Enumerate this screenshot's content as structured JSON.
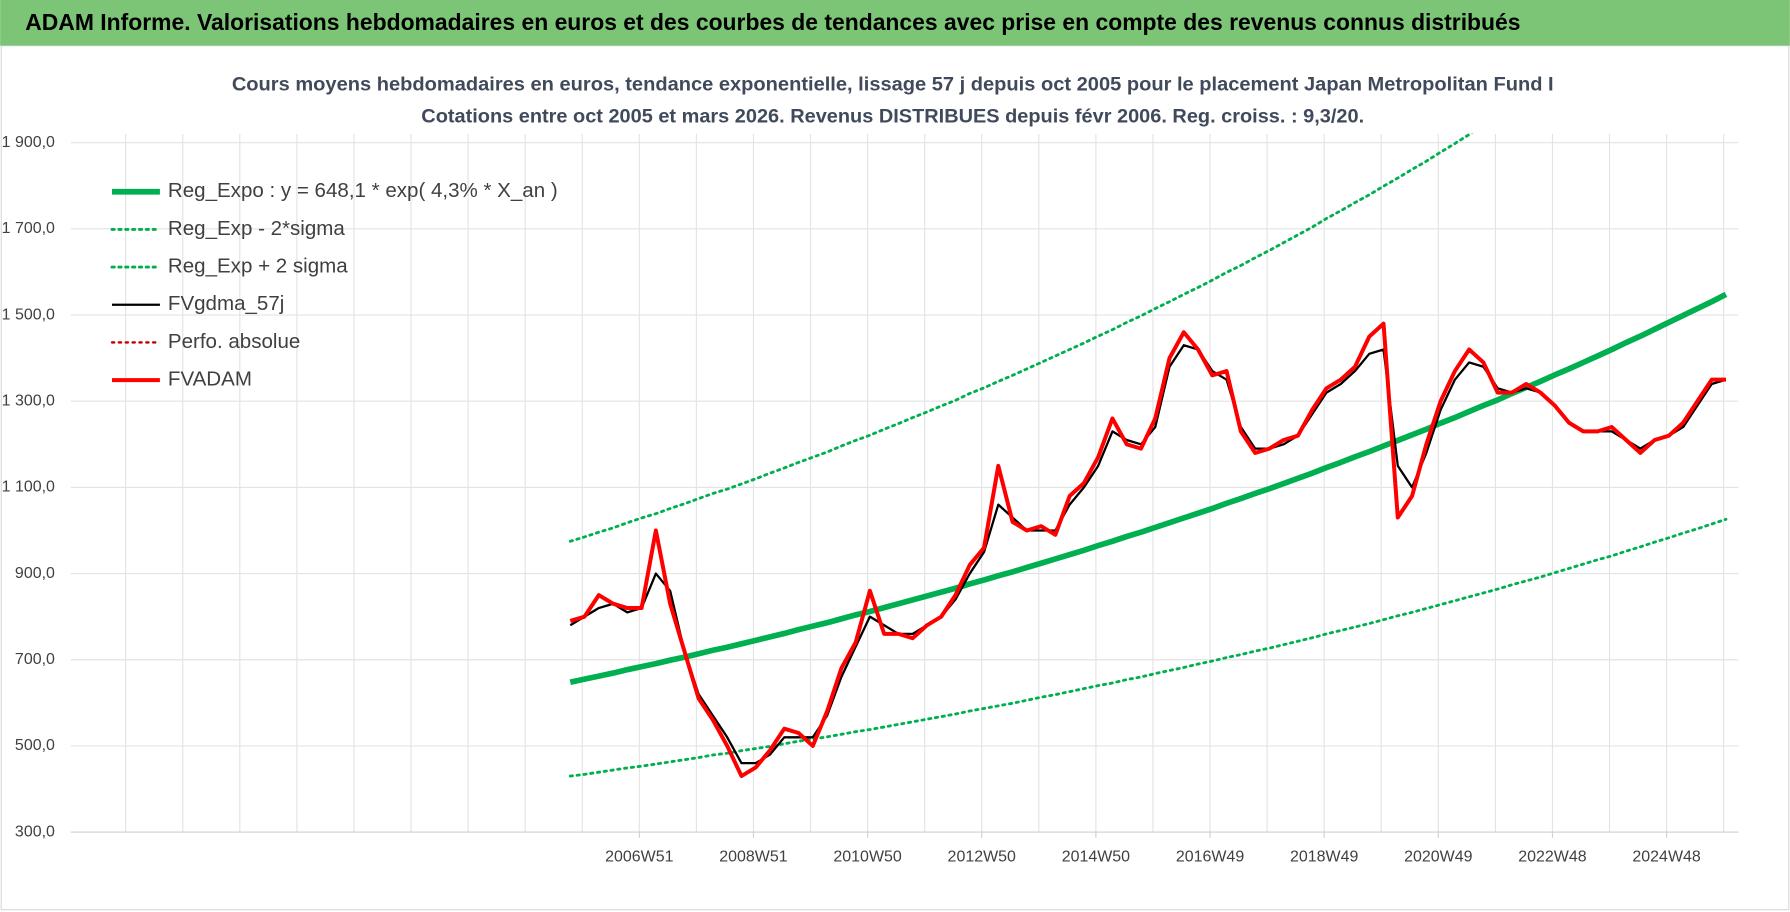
{
  "header": {
    "title": "ADAM Informe. Valorisations hebdomadaires en euros et des courbes de tendances avec prise en compte des revenus connus distribués"
  },
  "chart_data": {
    "type": "line",
    "title": "Cours moyens hebdomadaires en euros, tendance exponentielle, lissage 57 j depuis oct 2005 pour le placement Japan Metropolitan Fund I",
    "subtitle": "Cotations entre oct 2005 et mars 2026.  Revenus DISTRIBUES depuis févr 2006. Reg. croiss. : 9,3/20.",
    "x": [
      2005.75,
      2006,
      2006.25,
      2006.5,
      2006.75,
      2007,
      2007.25,
      2007.5,
      2007.75,
      2008,
      2008.25,
      2008.5,
      2008.75,
      2009,
      2009.25,
      2009.5,
      2009.75,
      2010,
      2010.25,
      2010.5,
      2010.75,
      2011,
      2011.25,
      2011.5,
      2011.75,
      2012,
      2012.25,
      2012.5,
      2012.75,
      2013,
      2013.25,
      2013.5,
      2013.75,
      2014,
      2014.25,
      2014.5,
      2014.75,
      2015,
      2015.25,
      2015.5,
      2015.75,
      2016,
      2016.25,
      2016.5,
      2016.75,
      2017,
      2017.25,
      2017.5,
      2017.75,
      2018,
      2018.25,
      2018.5,
      2018.75,
      2019,
      2019.25,
      2019.5,
      2019.75,
      2020,
      2020.25,
      2020.5,
      2020.75,
      2021,
      2021.25,
      2021.5,
      2021.75,
      2022,
      2022.25,
      2022.5,
      2022.75,
      2023,
      2023.25,
      2023.5,
      2023.75,
      2024,
      2024.25,
      2024.5,
      2024.75,
      2025,
      2025.25,
      2025.5,
      2025.75,
      2026
    ],
    "xlim": [
      1997,
      2026.22
    ],
    "xticks": [
      {
        "value": 2006.96,
        "label": "2006W51"
      },
      {
        "value": 2008.96,
        "label": "2008W51"
      },
      {
        "value": 2010.96,
        "label": "2010W50"
      },
      {
        "value": 2012.96,
        "label": "2012W50"
      },
      {
        "value": 2014.96,
        "label": "2014W50"
      },
      {
        "value": 2016.96,
        "label": "2016W49"
      },
      {
        "value": 2018.96,
        "label": "2018W49"
      },
      {
        "value": 2020.96,
        "label": "2020W49"
      },
      {
        "value": 2022.96,
        "label": "2022W48"
      },
      {
        "value": 2024.96,
        "label": "2024W48"
      }
    ],
    "xgrid": [
      1997.96,
      1998.96,
      1999.96,
      2000.96,
      2001.96,
      2002.96,
      2003.96,
      2004.96,
      2005.96,
      2006.96,
      2007.96,
      2008.96,
      2009.96,
      2010.96,
      2011.96,
      2012.96,
      2013.96,
      2014.96,
      2015.96,
      2016.96,
      2017.96,
      2018.96,
      2019.96,
      2020.96,
      2021.96,
      2022.96,
      2023.96,
      2024.96,
      2025.96
    ],
    "ylim": [
      300,
      1920
    ],
    "yticks": [
      {
        "value": 300,
        "label": "300,0"
      },
      {
        "value": 500,
        "label": "500,0"
      },
      {
        "value": 700,
        "label": "700,0"
      },
      {
        "value": 900,
        "label": "900,0"
      },
      {
        "value": 1100,
        "label": "1 100,0"
      },
      {
        "value": 1300,
        "label": "1 300,0"
      },
      {
        "value": 1500,
        "label": "1 500,0"
      },
      {
        "value": 1700,
        "label": "1 700,0"
      },
      {
        "value": 1900,
        "label": "1 900,0"
      }
    ],
    "grid": true,
    "legend": "upper left",
    "series": [
      {
        "name": "Reg_Expo : y = 648,1 * exp( 4,3% *  X_an )",
        "color": "#00b050",
        "width": 5,
        "dash": "solid",
        "values": [
          648,
          655,
          662,
          669,
          677,
          684,
          691,
          699,
          706,
          714,
          722,
          729,
          737,
          745,
          753,
          761,
          770,
          778,
          786,
          795,
          804,
          812,
          821,
          830,
          839,
          848,
          857,
          866,
          876,
          885,
          895,
          904,
          914,
          924,
          934,
          944,
          954,
          965,
          975,
          986,
          996,
          1007,
          1018,
          1029,
          1040,
          1051,
          1063,
          1074,
          1086,
          1097,
          1109,
          1121,
          1133,
          1146,
          1158,
          1171,
          1183,
          1196,
          1209,
          1222,
          1235,
          1249,
          1262,
          1276,
          1290,
          1303,
          1318,
          1332,
          1346,
          1361,
          1375,
          1390,
          1405,
          1420,
          1436,
          1451,
          1467,
          1483,
          1499,
          1515,
          1531,
          1548
        ]
      },
      {
        "name": "Reg_Exp - 2*sigma",
        "color": "#00b050",
        "width": 2.5,
        "dash": "dotted",
        "values": [
          430,
          434,
          439,
          444,
          449,
          453,
          458,
          463,
          468,
          473,
          479,
          483,
          489,
          494,
          499,
          505,
          511,
          516,
          521,
          527,
          533,
          538,
          544,
          550,
          556,
          562,
          568,
          574,
          581,
          587,
          593,
          599,
          606,
          613,
          619,
          626,
          633,
          640,
          646,
          654,
          660,
          668,
          675,
          682,
          690,
          697,
          705,
          712,
          720,
          727,
          735,
          743,
          751,
          760,
          768,
          776,
          784,
          793,
          802,
          810,
          819,
          828,
          837,
          846,
          855,
          864,
          874,
          883,
          892,
          902,
          912,
          922,
          932,
          941,
          952,
          962,
          973,
          983,
          994,
          1004,
          1015,
          1026
        ]
      },
      {
        "name": "Reg_Exp + 2 sigma",
        "color": "#00b050",
        "width": 2.5,
        "dash": "dotted",
        "values": [
          975,
          985,
          996,
          1006,
          1018,
          1029,
          1039,
          1051,
          1062,
          1074,
          1086,
          1096,
          1108,
          1120,
          1133,
          1145,
          1158,
          1170,
          1182,
          1196,
          1209,
          1221,
          1235,
          1248,
          1262,
          1275,
          1289,
          1302,
          1318,
          1331,
          1346,
          1360,
          1375,
          1390,
          1405,
          1420,
          1435,
          1451,
          1466,
          1483,
          1498,
          1515,
          1531,
          1548,
          1564,
          1581,
          1599,
          1615,
          1633,
          1650,
          1668,
          1686,
          1704,
          1724,
          1742,
          1761,
          1779,
          1799,
          1818,
          1838,
          1857,
          1878,
          1898,
          1919,
          1940,
          null,
          null,
          null,
          null,
          null,
          null,
          null,
          null,
          null,
          null,
          null,
          null,
          null,
          null,
          null,
          null,
          null
        ]
      },
      {
        "name": "FVgdma_57j",
        "color": "#000000",
        "width": 2,
        "dash": "solid",
        "values": [
          780,
          800,
          820,
          830,
          810,
          820,
          900,
          860,
          720,
          620,
          570,
          520,
          460,
          460,
          480,
          520,
          520,
          520,
          570,
          660,
          730,
          800,
          780,
          760,
          760,
          780,
          800,
          840,
          900,
          950,
          1060,
          1030,
          1000,
          1000,
          1000,
          1060,
          1100,
          1150,
          1230,
          1210,
          1200,
          1240,
          1380,
          1430,
          1420,
          1370,
          1350,
          1240,
          1190,
          1190,
          1200,
          1220,
          1270,
          1320,
          1340,
          1370,
          1410,
          1420,
          1150,
          1100,
          1180,
          1280,
          1350,
          1390,
          1380,
          1330,
          1320,
          1330,
          1320,
          1290,
          1250,
          1230,
          1230,
          1230,
          1210,
          1190,
          1210,
          1220,
          1240,
          1290,
          1340,
          1350
        ]
      },
      {
        "name": "Perfo. absolue",
        "color": "#c00000",
        "width": 2,
        "dash": "dotted",
        "values": [
          null,
          null,
          null,
          null,
          null,
          null,
          null,
          null,
          null,
          null,
          null,
          null,
          null,
          null,
          null,
          null,
          null,
          null,
          null,
          null,
          null,
          null,
          null,
          null,
          null,
          null,
          null,
          null,
          null,
          null,
          null,
          null,
          null,
          null,
          null,
          null,
          null,
          null,
          null,
          null,
          null,
          null,
          null,
          null,
          null,
          null,
          null,
          null,
          null,
          null,
          null,
          null,
          null,
          null,
          null,
          null,
          null,
          null,
          null,
          null,
          null,
          null,
          null,
          null,
          null,
          null,
          null,
          null,
          null,
          null,
          null,
          null,
          null,
          null,
          null,
          null,
          null,
          null,
          null,
          null,
          null,
          null
        ]
      },
      {
        "name": "FVADAM",
        "color": "#ff0000",
        "width": 3.5,
        "dash": "solid",
        "values": [
          790,
          800,
          850,
          830,
          820,
          820,
          1000,
          830,
          720,
          610,
          560,
          500,
          430,
          450,
          490,
          540,
          530,
          500,
          580,
          680,
          740,
          860,
          760,
          760,
          750,
          780,
          800,
          850,
          920,
          960,
          1150,
          1020,
          1000,
          1010,
          990,
          1080,
          1110,
          1170,
          1260,
          1200,
          1190,
          1260,
          1400,
          1460,
          1420,
          1360,
          1370,
          1230,
          1180,
          1190,
          1210,
          1220,
          1280,
          1330,
          1350,
          1380,
          1450,
          1480,
          1030,
          1080,
          1200,
          1300,
          1370,
          1420,
          1390,
          1320,
          1320,
          1340,
          1320,
          1290,
          1250,
          1230,
          1230,
          1240,
          1210,
          1180,
          1210,
          1220,
          1250,
          1300,
          1350,
          1350
        ]
      }
    ]
  }
}
